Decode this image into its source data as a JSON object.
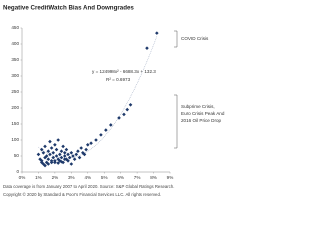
{
  "chart_data": {
    "type": "scatter",
    "title": "Negative CreditWatch Bias And Downgrades",
    "color": "#1f3a6b",
    "x": [
      0.01,
      0.011,
      0.012,
      0.012,
      0.013,
      0.013,
      0.014,
      0.014,
      0.015,
      0.015,
      0.016,
      0.016,
      0.017,
      0.017,
      0.018,
      0.018,
      0.019,
      0.019,
      0.02,
      0.02,
      0.021,
      0.021,
      0.022,
      0.022,
      0.023,
      0.023,
      0.024,
      0.024,
      0.025,
      0.025,
      0.026,
      0.026,
      0.027,
      0.027,
      0.028,
      0.028,
      0.029,
      0.03,
      0.03,
      0.031,
      0.032,
      0.033,
      0.034,
      0.035,
      0.036,
      0.037,
      0.038,
      0.039,
      0.04,
      0.042,
      0.012,
      0.014,
      0.016,
      0.018,
      0.02,
      0.022,
      0.024,
      0.026,
      0.045,
      0.048,
      0.051,
      0.054,
      0.059,
      0.062,
      0.064,
      0.066,
      0.076,
      0.082
    ],
    "values": [
      55,
      40,
      70,
      35,
      60,
      25,
      80,
      45,
      50,
      30,
      65,
      40,
      55,
      95,
      35,
      75,
      45,
      60,
      30,
      85,
      50,
      70,
      40,
      100,
      55,
      35,
      65,
      45,
      80,
      30,
      50,
      60,
      40,
      70,
      55,
      35,
      45,
      60,
      25,
      50,
      40,
      55,
      65,
      45,
      75,
      60,
      55,
      70,
      85,
      90,
      30,
      20,
      25,
      30,
      35,
      28,
      32,
      40,
      100,
      116,
      131,
      147,
      169,
      180,
      195,
      210,
      387,
      434
    ],
    "xlim": [
      0,
      0.09
    ],
    "ylim": [
      0,
      450
    ],
    "xticks": [
      {
        "value": 0,
        "label": "0%"
      },
      {
        "value": 0.01,
        "label": "1%"
      },
      {
        "value": 0.02,
        "label": "2%"
      },
      {
        "value": 0.03,
        "label": "3%"
      },
      {
        "value": 0.04,
        "label": "4%"
      },
      {
        "value": 0.05,
        "label": "5%"
      },
      {
        "value": 0.06,
        "label": "6%"
      },
      {
        "value": 0.07,
        "label": "7%"
      },
      {
        "value": 0.08,
        "label": "8%"
      },
      {
        "value": 0.09,
        "label": "9%"
      }
    ],
    "yticks": [
      0,
      50,
      100,
      150,
      200,
      250,
      300,
      350,
      400,
      450
    ],
    "trendline": {
      "coefficients": [
        124998,
        -6688.3,
        132.3
      ],
      "color": "#9aa7bf"
    },
    "annotations": {
      "equation": "y = 124998x² - 6688.3x + 132.3",
      "r_squared": "R² = 0.6973",
      "covid": "COVID Crisis",
      "crises": [
        "Subprime Crisis,",
        "Euro Crisis Peak And",
        "2016 Oil Price Drop"
      ]
    },
    "footnotes": [
      "Data coverage is from January 2007 to April 2020. Source: S&P Global Ratings Research.",
      "Copyright © 2020 by Standard & Poor's Financial Services LLC. All rights reserved."
    ]
  }
}
